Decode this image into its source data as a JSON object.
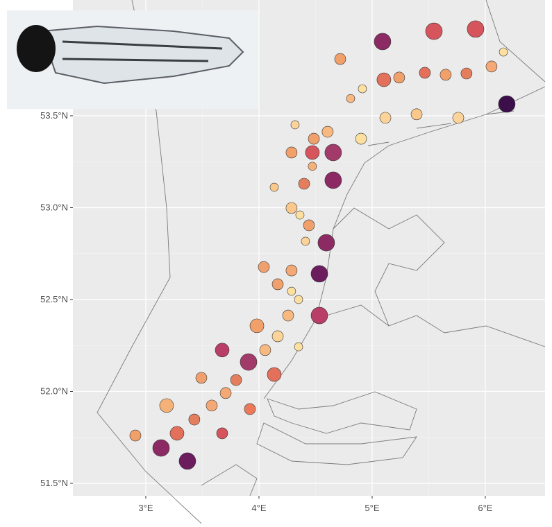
{
  "chart_data": {
    "type": "scatter",
    "x": [
      2.908,
      3.135,
      3.368,
      3.276,
      3.184,
      3.429,
      3.675,
      3.583,
      3.491,
      3.706,
      3.92,
      3.798,
      3.675,
      3.908,
      4.135,
      4.055,
      3.982,
      4.166,
      4.35,
      4.258,
      4.166,
      4.35,
      4.534,
      4.288,
      4.043,
      4.288,
      4.534,
      4.411,
      4.288,
      4.442,
      4.595,
      4.362,
      4.135,
      4.399,
      4.656,
      4.472,
      4.288,
      4.472,
      4.656,
      4.485,
      4.319,
      4.607,
      4.902,
      4.81,
      4.718,
      4.914,
      5.117,
      5.104,
      5.092,
      5.239,
      5.393,
      5.466,
      5.546,
      5.65,
      5.761,
      5.834,
      5.914,
      6.055,
      6.19,
      6.16
    ],
    "y": [
      51.76,
      51.692,
      51.621,
      51.772,
      51.923,
      51.847,
      51.772,
      51.923,
      52.074,
      51.991,
      51.904,
      52.062,
      52.225,
      52.16,
      52.092,
      52.225,
      52.357,
      52.3,
      52.243,
      52.413,
      52.583,
      52.5,
      52.413,
      52.545,
      52.677,
      52.658,
      52.64,
      52.817,
      52.998,
      52.904,
      52.809,
      52.96,
      53.111,
      53.13,
      53.149,
      53.225,
      53.3,
      53.3,
      53.3,
      53.375,
      53.451,
      53.413,
      53.375,
      53.594,
      53.809,
      53.647,
      53.489,
      53.696,
      53.904,
      53.708,
      53.508,
      53.734,
      53.96,
      53.723,
      53.489,
      53.73,
      53.972,
      53.768,
      53.564,
      53.847
    ],
    "sizes": [
      3,
      5,
      5,
      4,
      4,
      3,
      3,
      3,
      3,
      3,
      3,
      3,
      4,
      5,
      4,
      3,
      4,
      3,
      2,
      3,
      3,
      2,
      5,
      2,
      3,
      3,
      5,
      2,
      3,
      3,
      5,
      2,
      2,
      3,
      5,
      2,
      3,
      4,
      5,
      3,
      2,
      3,
      3,
      2,
      3,
      2,
      3,
      4,
      5,
      3,
      3,
      3,
      5,
      3,
      3,
      3,
      5,
      3,
      5,
      2
    ],
    "colors": [
      "#f2a06a",
      "#8c2a64",
      "#6b1d5e",
      "#e2705a",
      "#f5b278",
      "#e57e5c",
      "#d6545c",
      "#f3a875",
      "#f0a06c",
      "#f3a875",
      "#ec7a58",
      "#e57e5c",
      "#b83e68",
      "#a23a6a",
      "#e2705a",
      "#f8b981",
      "#f2a06a",
      "#fcd49a",
      "#fde0a0",
      "#f8b981",
      "#f0a06c",
      "#fde0a0",
      "#b83e68",
      "#fde0a0",
      "#f0a06c",
      "#f3a875",
      "#6b1d5e",
      "#fcd49a",
      "#fbc88c",
      "#f0a06c",
      "#8c2a64",
      "#fde0a0",
      "#fbc88c",
      "#e57e5c",
      "#8c2a64",
      "#f5b278",
      "#f2a06a",
      "#d6545c",
      "#a23a6a",
      "#f0a06c",
      "#fcd49a",
      "#f8b981",
      "#fde0a0",
      "#f8b981",
      "#f2a06a",
      "#fde0a0",
      "#fcd49a",
      "#e2705a",
      "#8c2a64",
      "#f0a06c",
      "#fbc88c",
      "#e2705a",
      "#d6545c",
      "#f2a06a",
      "#fcd49a",
      "#e57e5c",
      "#d6545c",
      "#f3a875",
      "#3d0f4a",
      "#fde0a0"
    ],
    "xlim": [
      2.356,
      6.528
    ],
    "ylim": [
      51.432,
      54.13
    ],
    "xticks": [
      {
        "value": 3,
        "label": "3°E"
      },
      {
        "value": 4,
        "label": "4°E"
      },
      {
        "value": 5,
        "label": "5°E"
      },
      {
        "value": 6,
        "label": "6°E"
      }
    ],
    "yticks": [
      {
        "value": 51.5,
        "label": "51.5°N"
      },
      {
        "value": 52,
        "label": "52.0°N"
      },
      {
        "value": 52.5,
        "label": "52.5°N"
      },
      {
        "value": 53,
        "label": "53.0°N"
      },
      {
        "value": 53.5,
        "label": "53.5°N"
      }
    ],
    "grid": true
  }
}
